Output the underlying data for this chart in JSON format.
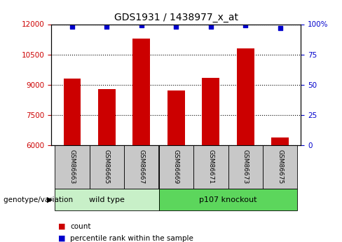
{
  "title": "GDS1931 / 1438977_x_at",
  "samples": [
    "GSM86663",
    "GSM86665",
    "GSM86667",
    "GSM86669",
    "GSM86671",
    "GSM86673",
    "GSM86675"
  ],
  "counts": [
    9300,
    8800,
    11300,
    8700,
    9350,
    10800,
    6400
  ],
  "percentiles": [
    98,
    98,
    99,
    98,
    98,
    99,
    97
  ],
  "group_labels": [
    "wild type",
    "p107 knockout"
  ],
  "group_colors": [
    "#c8f0c8",
    "#5cd65c"
  ],
  "group_wild_indices": [
    0,
    1,
    2
  ],
  "group_ko_indices": [
    3,
    4,
    5,
    6
  ],
  "bar_color": "#cc0000",
  "dot_color": "#0000cc",
  "ylim_left": [
    6000,
    12000
  ],
  "yticks_left": [
    6000,
    7500,
    9000,
    10500,
    12000
  ],
  "ylim_right": [
    0,
    100
  ],
  "yticks_right": [
    0,
    25,
    50,
    75,
    100
  ],
  "ylabel_left_color": "#cc0000",
  "ylabel_right_color": "#0000cc",
  "background_color": "#ffffff",
  "label_box_color": "#c8c8c8",
  "genotype_label": "genotype/variation",
  "legend_count_label": "count",
  "legend_percentile_label": "percentile rank within the sample",
  "bar_width": 0.5
}
